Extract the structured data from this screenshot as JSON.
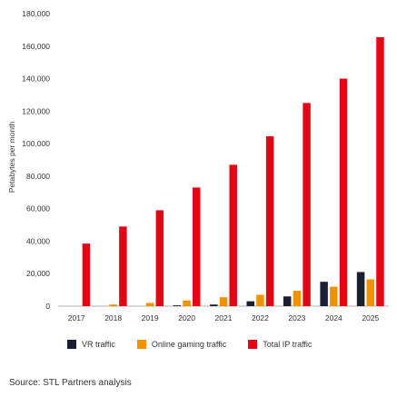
{
  "chart_data": {
    "type": "bar",
    "ylabel": "Petabytes per month",
    "ylim": [
      0,
      180000
    ],
    "yticks": [
      0,
      20000,
      40000,
      60000,
      80000,
      100000,
      120000,
      140000,
      160000,
      180000
    ],
    "ytick_labels": [
      "0",
      "20,000",
      "40,000",
      "60,000",
      "80,000",
      "100,000",
      "120,000",
      "140,000",
      "160,000",
      "180,000"
    ],
    "categories": [
      "2017",
      "2018",
      "2019",
      "2020",
      "2021",
      "2022",
      "2023",
      "2024",
      "2025"
    ],
    "series": [
      {
        "name": "VR traffic",
        "color": "#1c1f33",
        "values": [
          0,
          0,
          0,
          500,
          1000,
          3000,
          6000,
          15000,
          21000
        ]
      },
      {
        "name": "Online gaming traffic",
        "color": "#f39200",
        "values": [
          0,
          1000,
          2000,
          3500,
          5500,
          7000,
          9500,
          12000,
          16500
        ]
      },
      {
        "name": "Total IP traffic",
        "color": "#e30613",
        "values": [
          38500,
          49000,
          59000,
          73000,
          87000,
          104500,
          125000,
          140000,
          165500
        ]
      }
    ],
    "grid": false,
    "legend_position": "bottom"
  },
  "source_text": "Source: STL Partners analysis"
}
